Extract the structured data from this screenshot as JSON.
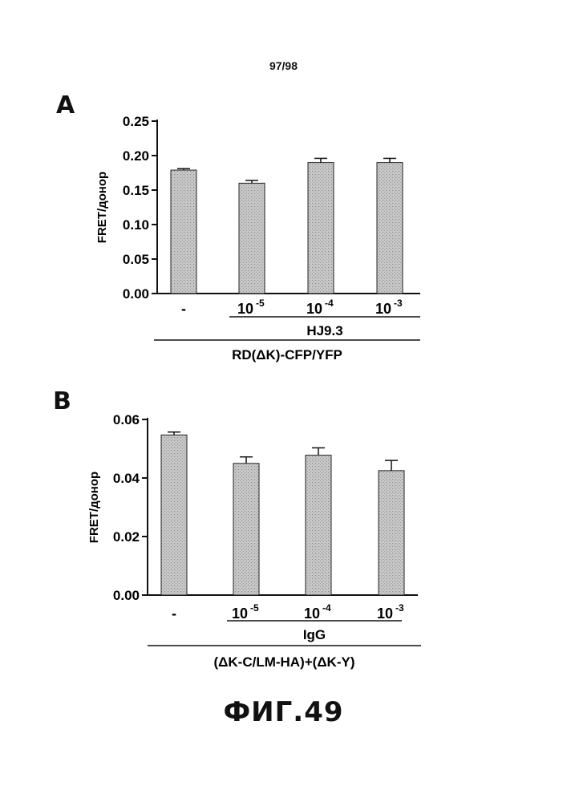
{
  "page_number": "97/98",
  "figure_caption": "ФИГ.49",
  "chart_data": [
    {
      "type": "bar",
      "panel_label": "A",
      "ylabel": "FRET/донор",
      "ylim": [
        0,
        0.25
      ],
      "yticks": [
        "0.00",
        "0.05",
        "0.10",
        "0.15",
        "0.20",
        "0.25"
      ],
      "tick_values": [
        0,
        0.05,
        0.1,
        0.15,
        0.2,
        0.25
      ],
      "categories": [
        "-",
        "10",
        "10",
        "10"
      ],
      "category_exponents": [
        "",
        "-5",
        "-4",
        "-3"
      ],
      "values": [
        0.179,
        0.16,
        0.19,
        0.19
      ],
      "errors": [
        0.002,
        0.004,
        0.006,
        0.006
      ],
      "group_label": "HJ9.3",
      "condition_label": "RD(ΔK)-CFP/YFP",
      "bar_color": "#c8c8c8",
      "grid": false
    },
    {
      "type": "bar",
      "panel_label": "B",
      "ylabel": "FRET/донор",
      "ylim": [
        0,
        0.06
      ],
      "yticks": [
        "0.00",
        "0.02",
        "0.04",
        "0.06"
      ],
      "tick_values": [
        0,
        0.02,
        0.04,
        0.06
      ],
      "categories": [
        "-",
        "10",
        "10",
        "10"
      ],
      "category_exponents": [
        "",
        "-5",
        "-4",
        "-3"
      ],
      "values": [
        0.0547,
        0.045,
        0.0478,
        0.0425
      ],
      "errors": [
        0.001,
        0.0022,
        0.0025,
        0.0035
      ],
      "group_label": "IgG",
      "condition_label": "(ΔK-C/LM-HA)+(ΔK-Y)",
      "bar_color": "#c8c8c8",
      "grid": false
    }
  ]
}
